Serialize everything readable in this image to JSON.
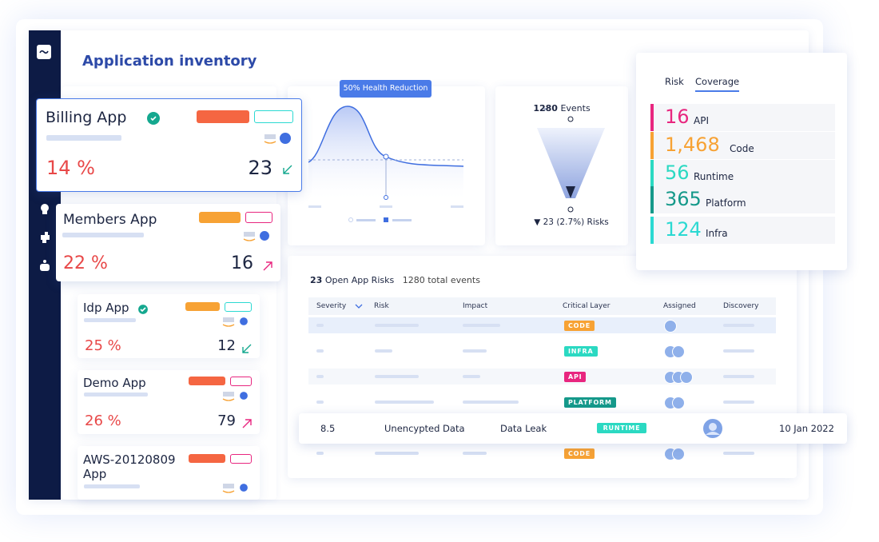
{
  "header": {
    "title": "Application inventory"
  },
  "apps": [
    {
      "name": "Billing App",
      "percent": "14 %",
      "count": "23"
    },
    {
      "name": "Members App",
      "percent": "22 %",
      "count": "16"
    },
    {
      "name": "Idp App",
      "percent": "25 %",
      "count": "12"
    },
    {
      "name": "Demo App",
      "percent": "26 %",
      "count": "79"
    },
    {
      "name": "AWS-20120809 App"
    }
  ],
  "health_chart": {
    "badge": "50% Health Reduction"
  },
  "funnel": {
    "events_count": "1280",
    "events_label": "Events",
    "risks": "▼ 23 (2.7%) Risks"
  },
  "coverage": {
    "tabs": [
      "Risk",
      "Coverage"
    ],
    "items": [
      {
        "value": "16",
        "label": "API",
        "color": "#e8267f"
      },
      {
        "value": "1,468",
        "label": "Code",
        "color": "#f7a234"
      },
      {
        "value": "56",
        "label": "Runtime",
        "color": "#2bd9c2"
      },
      {
        "value": "365",
        "label": "Platform",
        "color": "#15998a"
      },
      {
        "value": "124",
        "label": "Infra",
        "color": "#2bd9d2"
      }
    ]
  },
  "risks_table": {
    "count": "23",
    "title": "Open App Risks",
    "events": "1280 total events",
    "columns": [
      "Severity",
      "Risk",
      "Impact",
      "Critical Layer",
      "Assigned",
      "Discovery"
    ],
    "layers": [
      {
        "text": "CODE",
        "color": "#f7a234"
      },
      {
        "text": "INFRA",
        "color": "#2bd9c2"
      },
      {
        "text": "API",
        "color": "#e8267f"
      },
      {
        "text": "PLATFORM",
        "color": "#15998a"
      },
      {
        "text": "CODE",
        "color": "#f7a234"
      }
    ],
    "highlight": {
      "severity": "8.5",
      "risk": "Unencypted Data",
      "impact": "Data Leak",
      "layer": {
        "text": "RUNTIME",
        "color": "#2bd9c2"
      },
      "discovery": "10 Jan 2022"
    }
  }
}
